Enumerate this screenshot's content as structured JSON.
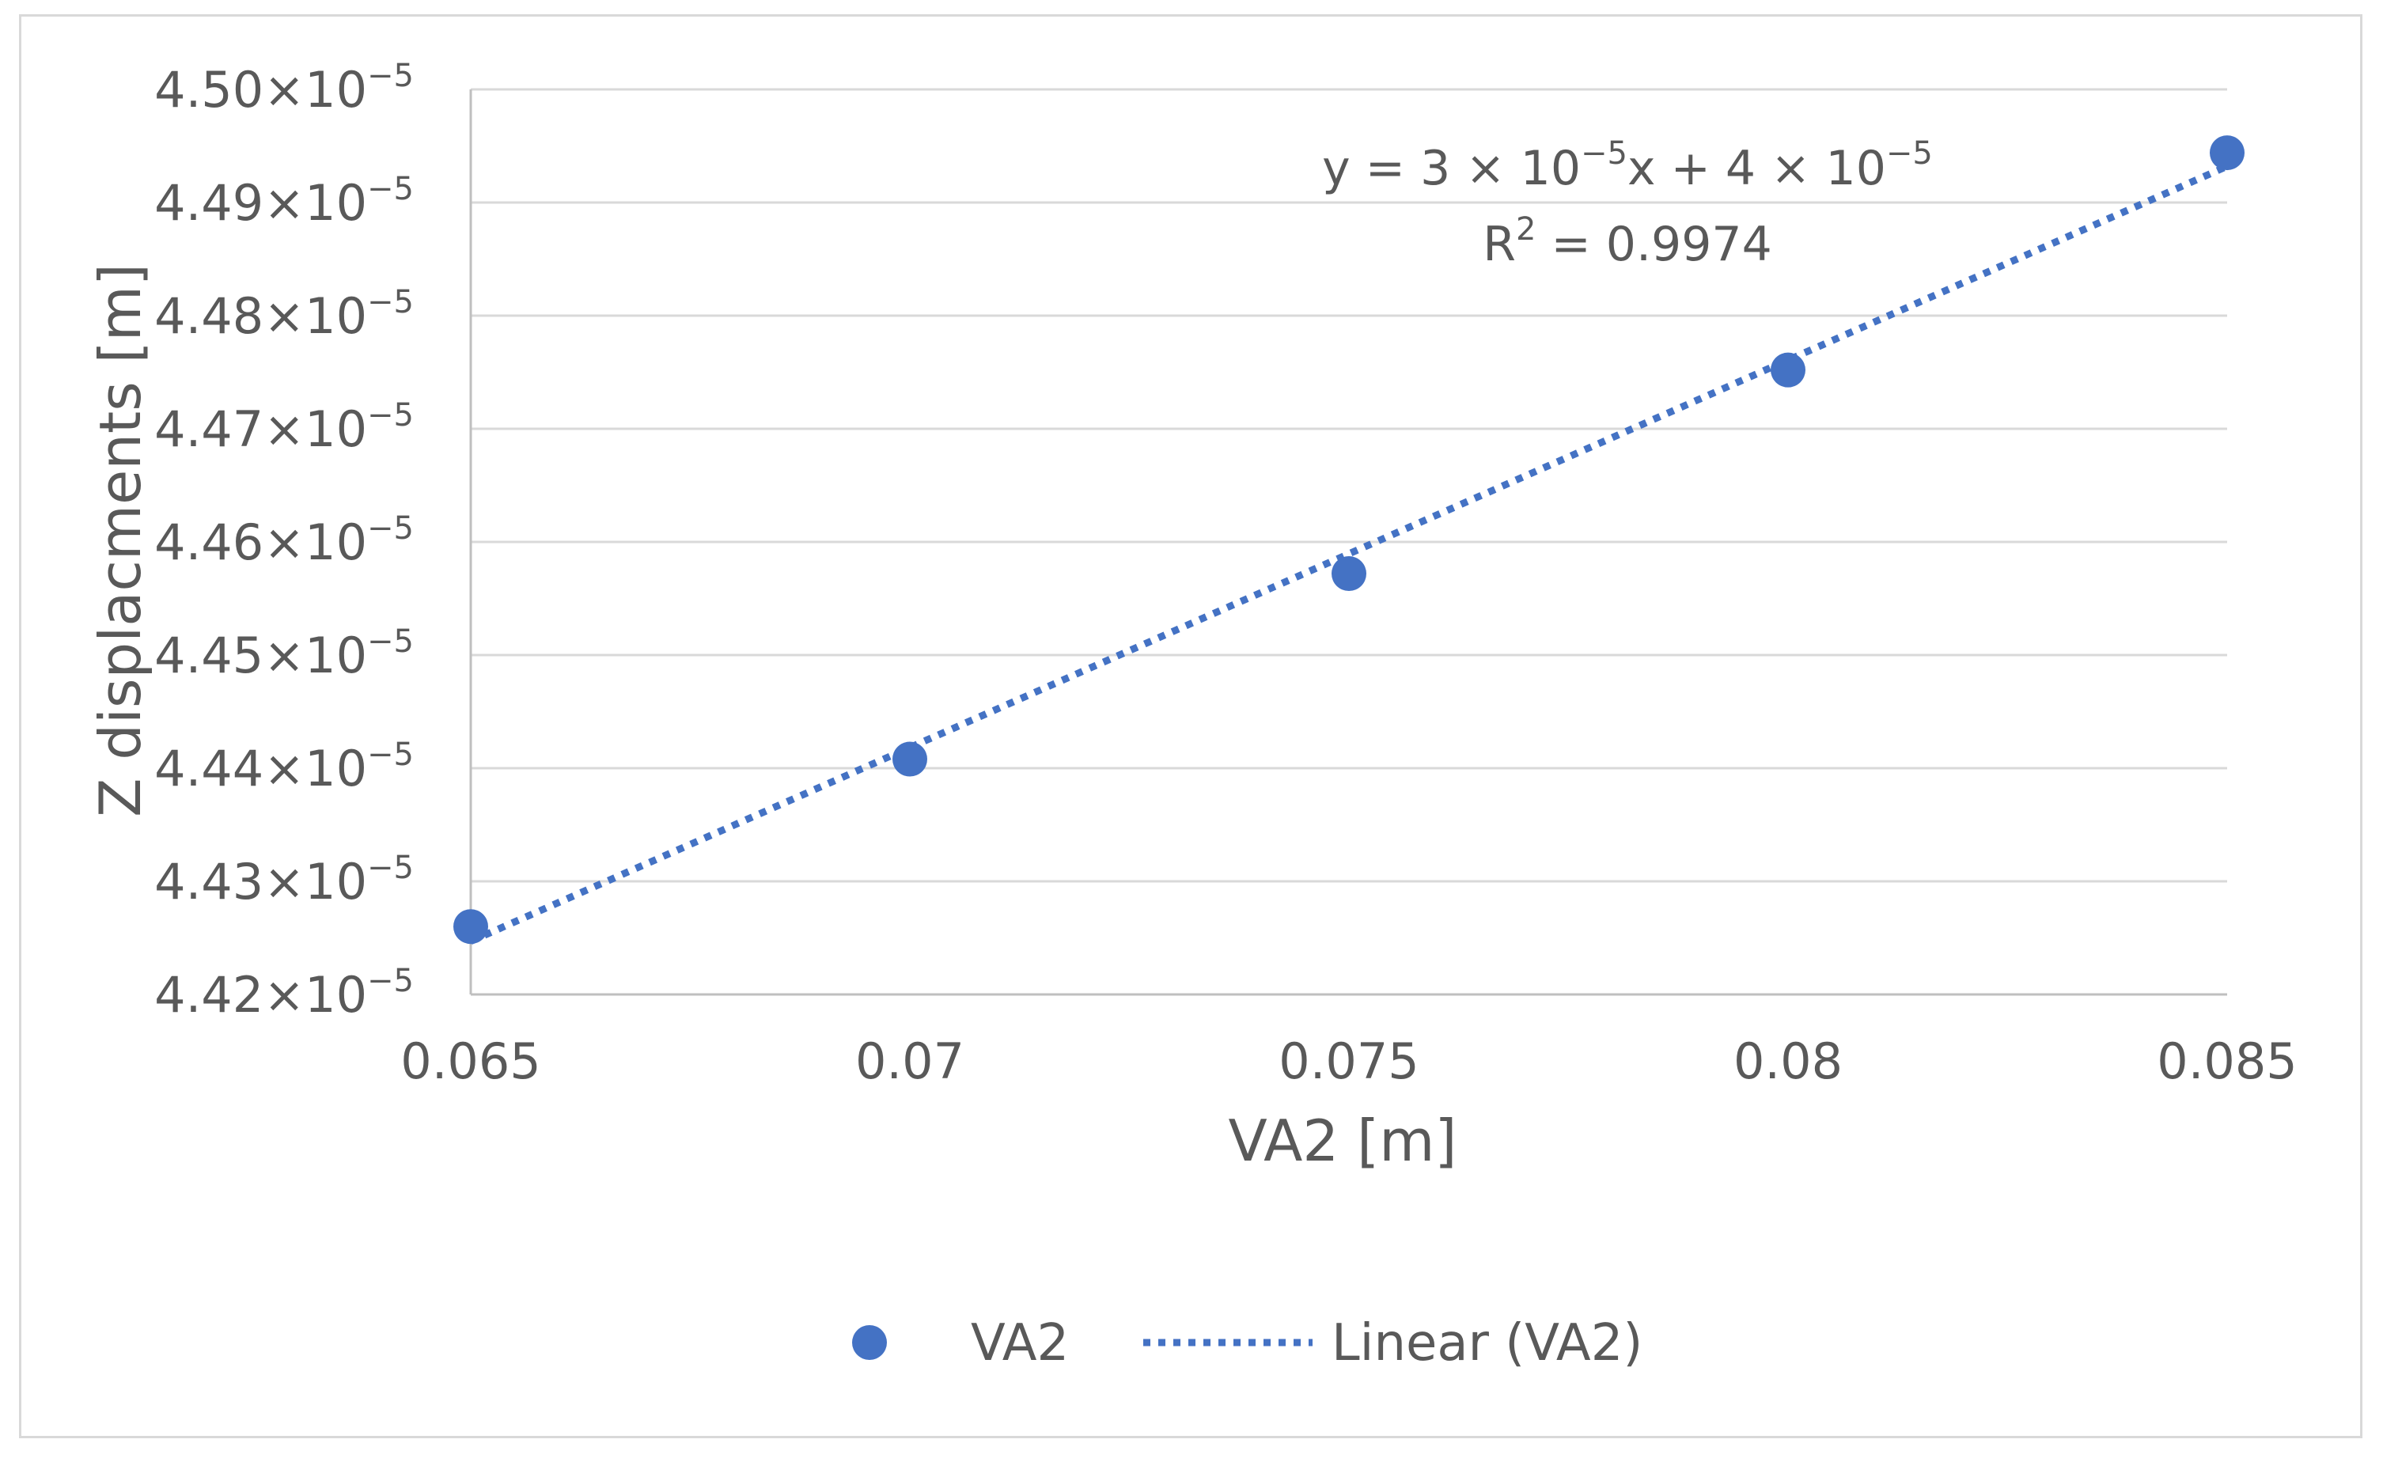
{
  "chart_data": {
    "type": "scatter",
    "title": "",
    "xlabel": "VA2 [m]",
    "ylabel": "Z displacments [m]",
    "xlim": [
      0.065,
      0.085
    ],
    "ylim": [
      4.42e-05,
      4.5e-05
    ],
    "grid": "horizontal",
    "x_ticks": [
      {
        "value": 0.065,
        "label": "0.065"
      },
      {
        "value": 0.07,
        "label": "0.07"
      },
      {
        "value": 0.075,
        "label": "0.075"
      },
      {
        "value": 0.08,
        "label": "0.08"
      },
      {
        "value": 0.085,
        "label": "0.085"
      }
    ],
    "y_ticks": [
      {
        "value": 4.42e-05,
        "mantissa": "4.42×10",
        "exponent": "−5"
      },
      {
        "value": 4.43e-05,
        "mantissa": "4.43×10",
        "exponent": "−5"
      },
      {
        "value": 4.44e-05,
        "mantissa": "4.44×10",
        "exponent": "−5"
      },
      {
        "value": 4.45e-05,
        "mantissa": "4.45×10",
        "exponent": "−5"
      },
      {
        "value": 4.46e-05,
        "mantissa": "4.46×10",
        "exponent": "−5"
      },
      {
        "value": 4.47e-05,
        "mantissa": "4.47×10",
        "exponent": "−5"
      },
      {
        "value": 4.48e-05,
        "mantissa": "4.48×10",
        "exponent": "−5"
      },
      {
        "value": 4.49e-05,
        "mantissa": "4.49×10",
        "exponent": "−5"
      },
      {
        "value": 4.5e-05,
        "mantissa": "4.50×10",
        "exponent": "−5"
      }
    ],
    "series": [
      {
        "name": "VA2",
        "color": "#4472C4",
        "points": [
          {
            "x": 0.065,
            "y": 4.426e-05
          },
          {
            "x": 0.07,
            "y": 4.4408e-05
          },
          {
            "x": 0.075,
            "y": 4.4572e-05
          },
          {
            "x": 0.08,
            "y": 4.4752e-05
          },
          {
            "x": 0.085,
            "y": 4.4944e-05
          }
        ]
      }
    ],
    "trendline": {
      "name": "Linear (VA2)",
      "type": "linear",
      "color": "#4472C4",
      "style": "dotted",
      "start": {
        "x": 0.065,
        "y": 4.4247e-05
      },
      "end": {
        "x": 0.085,
        "y": 4.4932e-05
      },
      "equation": {
        "part1": "y = 3 × 10",
        "exp1": "−5",
        "part2": "x + 4 × 10",
        "exp2": "−5"
      },
      "r2": {
        "label": "R",
        "sup": "2",
        "value": " = 0.9974"
      }
    },
    "legend": {
      "position": "bottom",
      "entries": [
        {
          "label": "VA2",
          "marker": "circle"
        },
        {
          "label": "Linear (VA2)",
          "marker": "dotted-line"
        }
      ]
    }
  }
}
